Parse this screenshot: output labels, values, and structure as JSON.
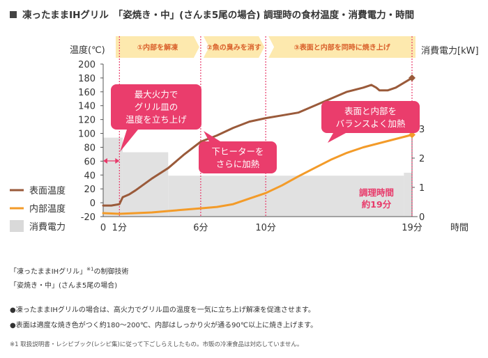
{
  "title": "凍ったままIHグリル　「姿焼き・中」(さんま5尾の場合) 調理時の食材温度・消費電力・時間",
  "chart_data": {
    "type": "line",
    "y_left_label": "温度(℃)",
    "y_right_label": "消費電力[kW]",
    "x_label": "時間",
    "y_left_ticks": [
      "200",
      "180",
      "160",
      "140",
      "120",
      "100",
      "80",
      "60",
      "40",
      "20",
      "0",
      "-20"
    ],
    "y_right_ticks": [
      "3",
      "2",
      "1",
      "0"
    ],
    "x_ticks": [
      "0",
      "1分",
      "6分",
      "10分",
      "19分"
    ],
    "ylim_left": [
      -20,
      200
    ],
    "ylim_right": [
      0,
      3.5
    ],
    "xlim": [
      0,
      19
    ],
    "phases": [
      {
        "label": "①内部を解凍",
        "x0": 1,
        "x1": 6
      },
      {
        "label": "②魚の臭みを消す",
        "x0": 6,
        "x1": 10
      },
      {
        "label": "③表面と内部を同時に焼き上げ",
        "x0": 10,
        "x1": 19
      }
    ],
    "series": [
      {
        "name": "表面温度",
        "color": "#9a5a3a",
        "x": [
          0,
          0.5,
          1,
          1.2,
          1.6,
          2,
          3,
          4,
          5,
          6,
          7,
          8,
          9,
          10,
          11,
          12,
          13,
          14,
          15,
          16,
          16.5,
          16.8,
          17,
          17.5,
          18,
          19
        ],
        "y": [
          -4,
          -4,
          -2,
          8,
          12,
          18,
          35,
          50,
          70,
          88,
          97,
          108,
          117,
          122,
          126,
          130,
          140,
          150,
          160,
          166,
          170,
          166,
          162,
          162,
          166,
          180
        ]
      },
      {
        "name": "内部温度",
        "color": "#f39b29",
        "x": [
          0,
          1,
          2,
          3,
          4,
          5,
          6,
          7,
          8,
          9,
          10,
          11,
          12,
          13,
          14,
          15,
          16,
          17,
          18,
          19
        ],
        "y": [
          -15,
          -16,
          -15,
          -14,
          -12,
          -10,
          -8,
          -6,
          -2,
          6,
          14,
          25,
          38,
          50,
          62,
          72,
          80,
          86,
          92,
          98
        ]
      }
    ],
    "power": {
      "name": "消費電力",
      "segments": [
        {
          "x0": 0,
          "x1": 1.2,
          "kw": 2.7
        },
        {
          "x0": 1.2,
          "x1": 4,
          "kw": 2.2
        },
        {
          "x0": 4,
          "x1": 18.5,
          "kw": 1.4
        },
        {
          "x0": 18.5,
          "x1": 19,
          "kw": 1.5
        }
      ]
    },
    "callouts": [
      {
        "lines": [
          "最大火力で",
          "グリル皿の",
          "温度を立ち上げ"
        ]
      },
      {
        "lines": [
          "下ヒーターを",
          "さらに加熱"
        ]
      },
      {
        "lines": [
          "表面と内部を",
          "バランスよく加熱"
        ]
      }
    ],
    "annotation": [
      "調理時間",
      "約19分"
    ]
  },
  "notes": {
    "line1": "「凍ったままIHグリル」",
    "line1_sup": "※1",
    "line1_suffix": "の制御技術",
    "line2": "「姿焼き・中」(さんま5尾の場合)",
    "bullet1": "●凍ったままIHグリルの場合は、高火力でグリル皿の温度を一気に立ち上げ解凍を促進させます。",
    "bullet2": "●表面は適度な焼き色がつく約180～200℃、内部はしっかり火が通る90℃以上に焼き上げます。",
    "footnote": "※1 取扱説明書・レシピブック(レシピ集)に従って下ごしらえしたもの。市販の冷凍食品は対応していません。"
  }
}
